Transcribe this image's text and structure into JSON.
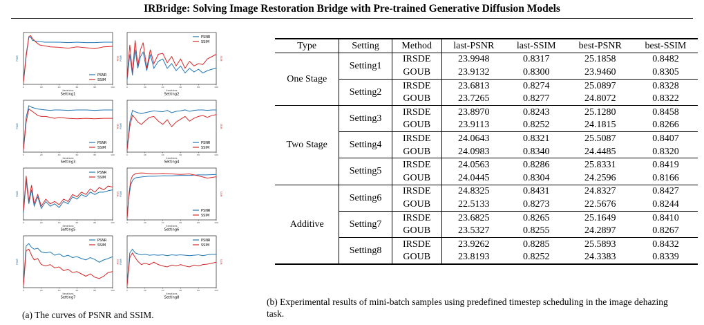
{
  "paper": {
    "title": "IRBridge: Solving Image Restoration Bridge with Pre-trained Generative Diffusion Models"
  },
  "figure_a": {
    "caption": "(a) The curves of PSNR and SSIM.",
    "colors": {
      "psnr": "#1f77b4",
      "ssim": "#d62728"
    }
  },
  "chart_data": [
    {
      "type": "line",
      "title": "Setting1",
      "xlabel": "iterations",
      "ylabel": "PSNR",
      "ylabel_right": "SSIM",
      "xlim": [
        0,
        100
      ],
      "legend": "bottom-right",
      "x": [
        0,
        3,
        6,
        8,
        10,
        14,
        18,
        24,
        30,
        40,
        50,
        60,
        70,
        80,
        90,
        100
      ],
      "series": [
        {
          "name": "PSNR",
          "values": [
            0.02,
            0.6,
            0.96,
            0.97,
            0.9,
            0.88,
            0.87,
            0.86,
            0.86,
            0.86,
            0.85,
            0.86,
            0.85,
            0.85,
            0.86,
            0.86
          ]
        },
        {
          "name": "SSIM",
          "values": [
            0.0,
            0.55,
            0.98,
            1.0,
            0.94,
            0.86,
            0.8,
            0.78,
            0.76,
            0.75,
            0.73,
            0.76,
            0.74,
            0.72,
            0.76,
            0.77
          ]
        }
      ]
    },
    {
      "type": "line",
      "title": "Setting2",
      "xlabel": "iterations",
      "ylabel": "PSNR",
      "ylabel_right": "SSIM",
      "xlim": [
        0,
        100
      ],
      "legend": "top-right",
      "x": [
        0,
        3,
        6,
        9,
        12,
        15,
        18,
        22,
        26,
        30,
        35,
        40,
        45,
        50,
        55,
        60,
        65,
        70,
        75,
        80,
        85,
        90,
        95,
        100
      ],
      "series": [
        {
          "name": "PSNR",
          "values": [
            0.05,
            0.6,
            0.15,
            0.7,
            0.3,
            0.55,
            0.65,
            0.25,
            0.6,
            0.3,
            0.45,
            0.5,
            0.3,
            0.4,
            0.25,
            0.35,
            0.2,
            0.3,
            0.22,
            0.28,
            0.2,
            0.25,
            0.28,
            0.3
          ]
        },
        {
          "name": "SSIM",
          "values": [
            0.1,
            0.8,
            0.2,
            0.9,
            0.35,
            0.7,
            0.85,
            0.3,
            0.7,
            0.4,
            0.6,
            0.62,
            0.42,
            0.55,
            0.35,
            0.5,
            0.3,
            0.45,
            0.35,
            0.4,
            0.38,
            0.5,
            0.55,
            0.6
          ]
        }
      ]
    },
    {
      "type": "line",
      "title": "Setting3",
      "xlabel": "iterations",
      "ylabel": "PSNR",
      "ylabel_right": "SSIM",
      "xlim": [
        0,
        100
      ],
      "legend": "bottom-right",
      "x": [
        0,
        3,
        6,
        9,
        12,
        16,
        20,
        25,
        30,
        35,
        40,
        50,
        60,
        70,
        80,
        90,
        100
      ],
      "series": [
        {
          "name": "PSNR",
          "values": [
            0.02,
            0.7,
            0.95,
            0.92,
            0.9,
            0.88,
            0.87,
            0.86,
            0.85,
            0.86,
            0.86,
            0.85,
            0.86,
            0.86,
            0.85,
            0.86,
            0.86
          ]
        },
        {
          "name": "SSIM",
          "values": [
            0.0,
            0.6,
            0.88,
            0.84,
            0.8,
            0.74,
            0.72,
            0.72,
            0.7,
            0.68,
            0.7,
            0.68,
            0.67,
            0.68,
            0.67,
            0.68,
            0.68
          ]
        }
      ]
    },
    {
      "type": "line",
      "title": "Setting4",
      "xlabel": "iterations",
      "ylabel": "PSNR",
      "ylabel_right": "SSIM",
      "xlim": [
        0,
        100
      ],
      "legend": "bottom-right",
      "x": [
        0,
        3,
        6,
        9,
        12,
        16,
        20,
        25,
        30,
        35,
        40,
        45,
        50,
        55,
        60,
        65,
        70,
        75,
        80,
        85,
        90,
        95,
        100
      ],
      "series": [
        {
          "name": "PSNR",
          "values": [
            0.02,
            0.6,
            0.85,
            0.82,
            0.8,
            0.78,
            0.8,
            0.82,
            0.84,
            0.83,
            0.82,
            0.85,
            0.8,
            0.83,
            0.84,
            0.86,
            0.83,
            0.85,
            0.86,
            0.86,
            0.85,
            0.86,
            0.86
          ]
        },
        {
          "name": "SSIM",
          "values": [
            0.0,
            0.5,
            0.75,
            0.68,
            0.6,
            0.55,
            0.62,
            0.7,
            0.72,
            0.62,
            0.55,
            0.65,
            0.5,
            0.6,
            0.66,
            0.72,
            0.62,
            0.68,
            0.72,
            0.74,
            0.7,
            0.74,
            0.76
          ]
        }
      ]
    },
    {
      "type": "line",
      "title": "Setting5",
      "xlabel": "iterations",
      "ylabel": "PSNR",
      "ylabel_right": "SSIM",
      "xlim": [
        0,
        100
      ],
      "legend": "top-right",
      "x": [
        0,
        3,
        6,
        9,
        12,
        16,
        20,
        25,
        30,
        35,
        40,
        45,
        50,
        55,
        60,
        65,
        70,
        75,
        80,
        85,
        90,
        95,
        100
      ],
      "series": [
        {
          "name": "PSNR",
          "values": [
            0.1,
            0.8,
            0.3,
            0.6,
            0.25,
            0.45,
            0.2,
            0.35,
            0.25,
            0.3,
            0.22,
            0.35,
            0.3,
            0.45,
            0.4,
            0.5,
            0.45,
            0.55,
            0.5,
            0.55,
            0.55,
            0.58,
            0.6
          ]
        },
        {
          "name": "SSIM",
          "values": [
            0.15,
            0.9,
            0.35,
            0.7,
            0.3,
            0.5,
            0.25,
            0.4,
            0.3,
            0.35,
            0.28,
            0.4,
            0.35,
            0.5,
            0.45,
            0.55,
            0.5,
            0.62,
            0.55,
            0.65,
            0.6,
            0.68,
            0.66
          ]
        }
      ]
    },
    {
      "type": "line",
      "title": "Setting6",
      "xlabel": "iterations",
      "ylabel": "PSNR",
      "ylabel_right": "SSIM",
      "xlim": [
        0,
        100
      ],
      "legend": "bottom-right",
      "x": [
        0,
        2,
        4,
        6,
        8,
        10,
        14,
        18,
        24,
        30,
        40,
        50,
        60,
        70,
        80,
        90,
        100
      ],
      "series": [
        {
          "name": "PSNR",
          "values": [
            0.0,
            0.45,
            0.7,
            0.8,
            0.84,
            0.86,
            0.87,
            0.88,
            0.89,
            0.89,
            0.9,
            0.9,
            0.91,
            0.91,
            0.92,
            0.92,
            0.93
          ]
        },
        {
          "name": "SSIM",
          "values": [
            0.0,
            0.5,
            0.8,
            0.9,
            0.93,
            0.95,
            0.96,
            0.96,
            0.95,
            0.94,
            0.95,
            0.94,
            0.93,
            0.94,
            0.9,
            0.85,
            0.88
          ]
        }
      ]
    },
    {
      "type": "line",
      "title": "Setting7",
      "xlabel": "iterations",
      "ylabel": "PSNR",
      "ylabel_right": "SSIM",
      "xlim": [
        0,
        100
      ],
      "legend": "top-right",
      "x": [
        0,
        3,
        6,
        9,
        12,
        16,
        20,
        25,
        30,
        35,
        40,
        45,
        50,
        55,
        60,
        65,
        70,
        75,
        80,
        85,
        90,
        95,
        100
      ],
      "series": [
        {
          "name": "PSNR",
          "values": [
            0.05,
            0.85,
            0.9,
            0.82,
            0.78,
            0.8,
            0.72,
            0.7,
            0.72,
            0.65,
            0.68,
            0.62,
            0.65,
            0.6,
            0.62,
            0.58,
            0.55,
            0.6,
            0.56,
            0.5,
            0.55,
            0.58,
            0.62
          ]
        },
        {
          "name": "SSIM",
          "values": [
            0.0,
            0.75,
            0.78,
            0.65,
            0.55,
            0.58,
            0.45,
            0.42,
            0.45,
            0.38,
            0.4,
            0.32,
            0.35,
            0.28,
            0.3,
            0.25,
            0.2,
            0.25,
            0.18,
            0.15,
            0.2,
            0.28,
            0.3
          ]
        }
      ]
    },
    {
      "type": "line",
      "title": "Setting8",
      "xlabel": "iterations",
      "ylabel": "PSNR",
      "ylabel_right": "SSIM",
      "xlim": [
        0,
        100
      ],
      "legend": "top-right",
      "x": [
        0,
        3,
        6,
        9,
        12,
        16,
        20,
        25,
        30,
        35,
        40,
        45,
        50,
        55,
        60,
        65,
        70,
        75,
        80,
        85,
        90,
        95,
        100
      ],
      "series": [
        {
          "name": "PSNR",
          "values": [
            0.05,
            0.7,
            0.78,
            0.7,
            0.68,
            0.66,
            0.67,
            0.65,
            0.66,
            0.65,
            0.66,
            0.64,
            0.66,
            0.65,
            0.66,
            0.65,
            0.64,
            0.65,
            0.66,
            0.64,
            0.66,
            0.67,
            0.67
          ]
        },
        {
          "name": "SSIM",
          "values": [
            0.0,
            0.6,
            0.7,
            0.6,
            0.52,
            0.45,
            0.48,
            0.45,
            0.5,
            0.45,
            0.42,
            0.4,
            0.44,
            0.42,
            0.45,
            0.42,
            0.4,
            0.44,
            0.42,
            0.45,
            0.46,
            0.48,
            0.5
          ]
        }
      ]
    }
  ],
  "table": {
    "caption": "(b) Experimental results of mini-batch samples using predefined timestep scheduling in the image dehazing task.",
    "headers": [
      "Type",
      "Setting",
      "Method",
      "last-PSNR",
      "last-SSIM",
      "best-PSNR",
      "best-SSIM"
    ],
    "groups": [
      {
        "type": "One Stage",
        "settings": [
          {
            "setting": "Setting1",
            "rows": [
              {
                "method": "IRSDE",
                "last_psnr": "23.9948",
                "last_ssim": "0.8317",
                "best_psnr": "25.1858",
                "best_ssim": "0.8482"
              },
              {
                "method": "GOUB",
                "last_psnr": "23.9132",
                "last_ssim": "0.8300",
                "best_psnr": "23.9460",
                "best_ssim": "0.8305"
              }
            ]
          },
          {
            "setting": "Setting2",
            "rows": [
              {
                "method": "IRSDE",
                "last_psnr": "23.6813",
                "last_ssim": "0.8274",
                "best_psnr": "25.0897",
                "best_ssim": "0.8328"
              },
              {
                "method": "GOUB",
                "last_psnr": "23.7265",
                "last_ssim": "0.8277",
                "best_psnr": "24.8072",
                "best_ssim": "0.8322"
              }
            ]
          }
        ]
      },
      {
        "type": "Two Stage",
        "settings": [
          {
            "setting": "Setting3",
            "rows": [
              {
                "method": "IRSDE",
                "last_psnr": "23.8970",
                "last_ssim": "0.8243",
                "best_psnr": "25.1280",
                "best_ssim": "0.8458"
              },
              {
                "method": "GOUB",
                "last_psnr": "23.9113",
                "last_ssim": "0.8252",
                "best_psnr": "24.1815",
                "best_ssim": "0.8266"
              }
            ]
          },
          {
            "setting": "Setting4",
            "rows": [
              {
                "method": "IRSDE",
                "last_psnr": "24.0643",
                "last_ssim": "0.8321",
                "best_psnr": "25.5087",
                "best_ssim": "0.8407"
              },
              {
                "method": "GOUB",
                "last_psnr": "24.0983",
                "last_ssim": "0.8340",
                "best_psnr": "24.4485",
                "best_ssim": "0.8320"
              }
            ]
          },
          {
            "setting": "Setting5",
            "rows": [
              {
                "method": "IRSDE",
                "last_psnr": "24.0563",
                "last_ssim": "0.8286",
                "best_psnr": "25.8331",
                "best_ssim": "0.8419"
              },
              {
                "method": "GOUB",
                "last_psnr": "24.0445",
                "last_ssim": "0.8304",
                "best_psnr": "24.2596",
                "best_ssim": "0.8166"
              }
            ]
          }
        ]
      },
      {
        "type": "Additive",
        "settings": [
          {
            "setting": "Setting6",
            "rows": [
              {
                "method": "IRSDE",
                "last_psnr": "24.8325",
                "last_ssim": "0.8431",
                "best_psnr": "24.8327",
                "best_ssim": "0.8427"
              },
              {
                "method": "GOUB",
                "last_psnr": "22.5133",
                "last_ssim": "0.8273",
                "best_psnr": "22.5676",
                "best_ssim": "0.8244"
              }
            ]
          },
          {
            "setting": "Setting7",
            "rows": [
              {
                "method": "IRSDE",
                "last_psnr": "23.6825",
                "last_ssim": "0.8265",
                "best_psnr": "25.1649",
                "best_ssim": "0.8410"
              },
              {
                "method": "GOUB",
                "last_psnr": "23.5327",
                "last_ssim": "0.8255",
                "best_psnr": "24.2897",
                "best_ssim": "0.8267"
              }
            ]
          },
          {
            "setting": "Setting8",
            "rows": [
              {
                "method": "IRSDE",
                "last_psnr": "23.9262",
                "last_ssim": "0.8285",
                "best_psnr": "25.5893",
                "best_ssim": "0.8432"
              },
              {
                "method": "GOUB",
                "last_psnr": "23.8193",
                "last_ssim": "0.8252",
                "best_psnr": "24.3383",
                "best_ssim": "0.8339"
              }
            ]
          }
        ]
      }
    ]
  }
}
